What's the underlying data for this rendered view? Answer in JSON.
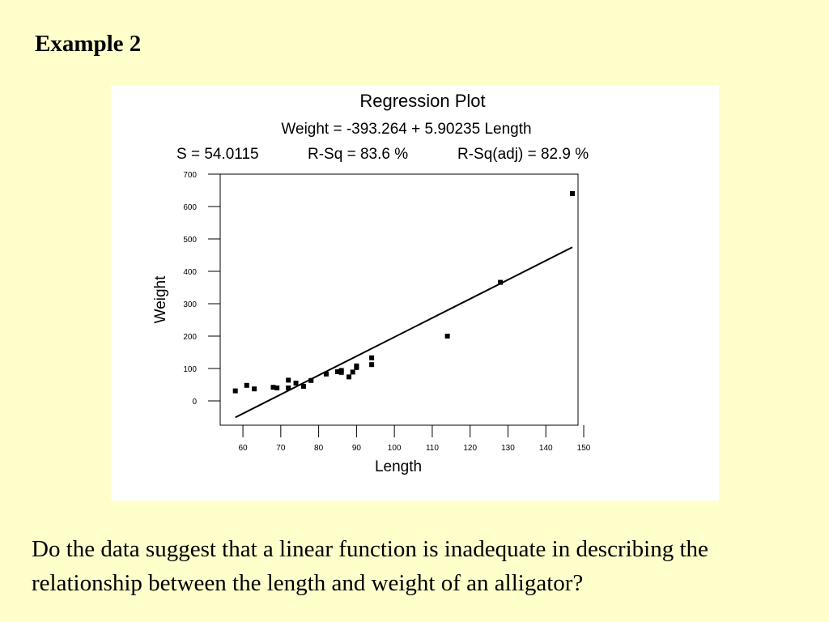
{
  "slide": {
    "title": "Example 2",
    "question": "Do the data suggest that a linear function is inadequate in describing the relationship between the length and weight of an alligator?"
  },
  "chart_data": {
    "type": "scatter",
    "title": "Regression Plot",
    "equation": "Weight = -393.264 + 5.90235 Length",
    "stats": {
      "s": "S = 54.0115",
      "rsq": "R-Sq = 83.6 %",
      "rsq_adj": "R-Sq(adj) = 82.9 %"
    },
    "xlabel": "Length",
    "ylabel": "Weight",
    "xlim": [
      54,
      148.5
    ],
    "ylim": [
      -75,
      700
    ],
    "xticks": [
      60,
      70,
      80,
      90,
      100,
      110,
      120,
      130,
      140,
      150
    ],
    "yticks": [
      0,
      100,
      200,
      300,
      400,
      500,
      600,
      700
    ],
    "grid": false,
    "fit_line": {
      "intercept": -393.264,
      "slope": 5.90235,
      "x_range": [
        58,
        147
      ]
    },
    "points": [
      {
        "x": 58,
        "y": 31
      },
      {
        "x": 61,
        "y": 48
      },
      {
        "x": 63,
        "y": 37
      },
      {
        "x": 68,
        "y": 42
      },
      {
        "x": 69,
        "y": 40
      },
      {
        "x": 72,
        "y": 64
      },
      {
        "x": 72,
        "y": 40
      },
      {
        "x": 74,
        "y": 55
      },
      {
        "x": 76,
        "y": 45
      },
      {
        "x": 78,
        "y": 63
      },
      {
        "x": 82,
        "y": 83
      },
      {
        "x": 85,
        "y": 90
      },
      {
        "x": 86,
        "y": 88
      },
      {
        "x": 86,
        "y": 94
      },
      {
        "x": 88,
        "y": 74
      },
      {
        "x": 89,
        "y": 89
      },
      {
        "x": 90,
        "y": 103
      },
      {
        "x": 90,
        "y": 108
      },
      {
        "x": 94,
        "y": 133
      },
      {
        "x": 94,
        "y": 112
      },
      {
        "x": 114,
        "y": 200
      },
      {
        "x": 128,
        "y": 366
      },
      {
        "x": 147,
        "y": 640
      }
    ]
  }
}
